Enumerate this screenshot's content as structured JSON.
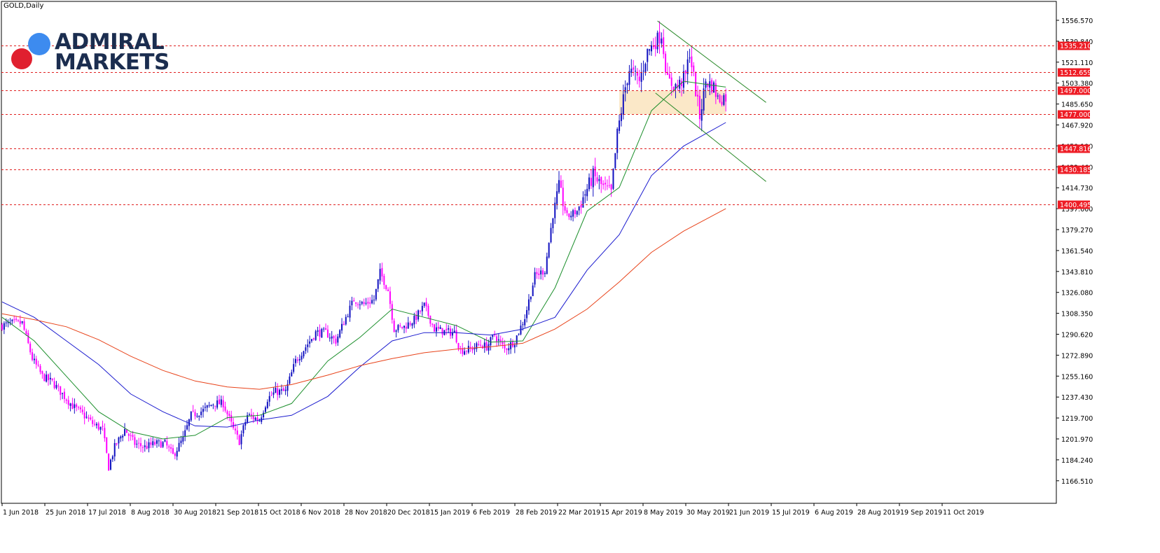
{
  "window": {
    "title": "GOLD,Daily"
  },
  "logo": {
    "line1": "ADMIRAL",
    "line2": "MARKETS"
  },
  "chart_data": {
    "type": "candlestick",
    "title": "GOLD,Daily",
    "ylim": [
      1155,
      1570
    ],
    "x_tick_labels": [
      "1 Jun 2018",
      "25 Jun 2018",
      "17 Jul 2018",
      "8 Aug 2018",
      "30 Aug 2018",
      "21 Sep 2018",
      "15 Oct 2018",
      "6 Nov 2018",
      "28 Nov 2018",
      "20 Dec 2018",
      "15 Jan 2019",
      "6 Feb 2019",
      "28 Feb 2019",
      "22 Mar 2019",
      "15 Apr 2019",
      "8 May 2019",
      "30 May 2019",
      "21 Jun 2019",
      "15 Jul 2019",
      "6 Aug 2019",
      "28 Aug 2019",
      "19 Sep 2019",
      "11 Oct 2019"
    ],
    "y_tick_labels": [
      "1556.570",
      "1539.840",
      "1521.110",
      "1503.380",
      "1485.650",
      "1467.920",
      "1450.190",
      "1432.460",
      "1414.730",
      "1397.000",
      "1379.270",
      "1361.540",
      "1343.810",
      "1326.080",
      "1308.350",
      "1290.620",
      "1272.890",
      "1255.160",
      "1237.430",
      "1219.700",
      "1201.970",
      "1184.240",
      "1166.510"
    ],
    "horizontal_levels": [
      {
        "price": 1535.21,
        "label": "1535.210"
      },
      {
        "price": 1512.659,
        "label": "1512.659"
      },
      {
        "price": 1497.0,
        "label": "1497.000"
      },
      {
        "price": 1477.0,
        "label": "1477.000"
      },
      {
        "price": 1447.816,
        "label": "1447.816"
      },
      {
        "price": 1430.185,
        "label": "1430.185"
      },
      {
        "price": 1400.495,
        "label": "1400.495"
      }
    ],
    "zone": {
      "from": "2019-08-06",
      "to": "2019-10-18",
      "low": 1477.0,
      "high": 1497.0,
      "color": "#fbe8c8"
    },
    "close_anchors": [
      [
        "2018-06-01",
        1298
      ],
      [
        "2018-06-08",
        1300
      ],
      [
        "2018-06-15",
        1300
      ],
      [
        "2018-06-22",
        1270
      ],
      [
        "2018-06-29",
        1255
      ],
      [
        "2018-07-06",
        1250
      ],
      [
        "2018-07-13",
        1240
      ],
      [
        "2018-07-20",
        1230
      ],
      [
        "2018-07-27",
        1223
      ],
      [
        "2018-08-03",
        1215
      ],
      [
        "2018-08-10",
        1210
      ],
      [
        "2018-08-15",
        1178
      ],
      [
        "2018-08-20",
        1195
      ],
      [
        "2018-08-27",
        1210
      ],
      [
        "2018-09-03",
        1198
      ],
      [
        "2018-09-10",
        1195
      ],
      [
        "2018-09-17",
        1198
      ],
      [
        "2018-09-24",
        1198
      ],
      [
        "2018-09-28",
        1188
      ],
      [
        "2018-10-05",
        1202
      ],
      [
        "2018-10-11",
        1222
      ],
      [
        "2018-10-19",
        1226
      ],
      [
        "2018-10-26",
        1232
      ],
      [
        "2018-11-02",
        1232
      ],
      [
        "2018-11-09",
        1210
      ],
      [
        "2018-11-14",
        1200
      ],
      [
        "2018-11-20",
        1222
      ],
      [
        "2018-11-28",
        1218
      ],
      [
        "2018-12-04",
        1236
      ],
      [
        "2018-12-10",
        1242
      ],
      [
        "2018-12-17",
        1242
      ],
      [
        "2018-12-24",
        1268
      ],
      [
        "2018-12-31",
        1280
      ],
      [
        "2019-01-07",
        1292
      ],
      [
        "2019-01-14",
        1292
      ],
      [
        "2019-01-21",
        1285
      ],
      [
        "2019-01-28",
        1305
      ],
      [
        "2019-02-01",
        1320
      ],
      [
        "2019-02-08",
        1316
      ],
      [
        "2019-02-15",
        1320
      ],
      [
        "2019-02-20",
        1343
      ],
      [
        "2019-02-26",
        1328
      ],
      [
        "2019-03-01",
        1295
      ],
      [
        "2019-03-08",
        1297
      ],
      [
        "2019-03-15",
        1303
      ],
      [
        "2019-03-22",
        1315
      ],
      [
        "2019-03-29",
        1295
      ],
      [
        "2019-04-05",
        1293
      ],
      [
        "2019-04-12",
        1292
      ],
      [
        "2019-04-17",
        1277
      ],
      [
        "2019-04-24",
        1278
      ],
      [
        "2019-05-01",
        1282
      ],
      [
        "2019-05-06",
        1280
      ],
      [
        "2019-05-10",
        1290
      ],
      [
        "2019-05-17",
        1278
      ],
      [
        "2019-05-24",
        1285
      ],
      [
        "2019-05-31",
        1305
      ],
      [
        "2019-06-07",
        1340
      ],
      [
        "2019-06-14",
        1345
      ],
      [
        "2019-06-20",
        1392
      ],
      [
        "2019-06-25",
        1415
      ],
      [
        "2019-07-01",
        1390
      ],
      [
        "2019-07-08",
        1395
      ],
      [
        "2019-07-12",
        1410
      ],
      [
        "2019-07-18",
        1425
      ],
      [
        "2019-07-25",
        1415
      ],
      [
        "2019-07-31",
        1410
      ],
      [
        "2019-08-05",
        1460
      ],
      [
        "2019-08-09",
        1500
      ],
      [
        "2019-08-13",
        1515
      ],
      [
        "2019-08-20",
        1505
      ],
      [
        "2019-08-26",
        1530
      ],
      [
        "2019-09-04",
        1545
      ],
      [
        "2019-09-09",
        1505
      ],
      [
        "2019-09-16",
        1500
      ],
      [
        "2019-09-20",
        1510
      ],
      [
        "2019-09-24",
        1530
      ],
      [
        "2019-10-01",
        1475
      ],
      [
        "2019-10-04",
        1505
      ],
      [
        "2019-10-10",
        1500
      ],
      [
        "2019-10-14",
        1490
      ],
      [
        "2019-10-18",
        1492
      ]
    ],
    "series": [
      {
        "kind": "ma",
        "period": 20,
        "color": "#1c8f2c",
        "anchors": [
          [
            "2018-06-01",
            1305
          ],
          [
            "2018-06-25",
            1285
          ],
          [
            "2018-07-17",
            1255
          ],
          [
            "2018-08-08",
            1225
          ],
          [
            "2018-08-30",
            1208
          ],
          [
            "2018-09-21",
            1202
          ],
          [
            "2018-10-15",
            1205
          ],
          [
            "2018-11-06",
            1220
          ],
          [
            "2018-11-28",
            1222
          ],
          [
            "2018-12-20",
            1232
          ],
          [
            "2019-01-15",
            1268
          ],
          [
            "2019-02-06",
            1288
          ],
          [
            "2019-02-28",
            1312
          ],
          [
            "2019-03-22",
            1305
          ],
          [
            "2019-04-15",
            1298
          ],
          [
            "2019-05-08",
            1284
          ],
          [
            "2019-05-30",
            1285
          ],
          [
            "2019-06-21",
            1330
          ],
          [
            "2019-07-15",
            1395
          ],
          [
            "2019-08-06",
            1415
          ],
          [
            "2019-08-28",
            1480
          ],
          [
            "2019-09-19",
            1505
          ],
          [
            "2019-10-18",
            1500
          ]
        ]
      },
      {
        "kind": "ma",
        "period": 50,
        "color": "#1c1ccf",
        "anchors": [
          [
            "2018-06-01",
            1318
          ],
          [
            "2018-06-25",
            1305
          ],
          [
            "2018-07-17",
            1285
          ],
          [
            "2018-08-08",
            1265
          ],
          [
            "2018-08-30",
            1240
          ],
          [
            "2018-09-21",
            1225
          ],
          [
            "2018-10-15",
            1213
          ],
          [
            "2018-11-06",
            1212
          ],
          [
            "2018-11-28",
            1218
          ],
          [
            "2018-12-20",
            1222
          ],
          [
            "2019-01-15",
            1238
          ],
          [
            "2019-02-06",
            1263
          ],
          [
            "2019-02-28",
            1285
          ],
          [
            "2019-03-22",
            1292
          ],
          [
            "2019-04-15",
            1292
          ],
          [
            "2019-05-08",
            1290
          ],
          [
            "2019-05-30",
            1295
          ],
          [
            "2019-06-21",
            1305
          ],
          [
            "2019-07-15",
            1345
          ],
          [
            "2019-08-06",
            1375
          ],
          [
            "2019-08-28",
            1425
          ],
          [
            "2019-09-19",
            1450
          ],
          [
            "2019-10-18",
            1470
          ]
        ]
      },
      {
        "kind": "ma",
        "period": 200,
        "color": "#e8431a",
        "anchors": [
          [
            "2018-06-01",
            1308
          ],
          [
            "2018-06-25",
            1303
          ],
          [
            "2018-07-17",
            1297
          ],
          [
            "2018-08-08",
            1286
          ],
          [
            "2018-08-30",
            1272
          ],
          [
            "2018-09-21",
            1260
          ],
          [
            "2018-10-15",
            1251
          ],
          [
            "2018-11-06",
            1246
          ],
          [
            "2018-11-28",
            1244
          ],
          [
            "2018-12-20",
            1248
          ],
          [
            "2019-01-15",
            1256
          ],
          [
            "2019-02-06",
            1264
          ],
          [
            "2019-02-28",
            1270
          ],
          [
            "2019-03-22",
            1275
          ],
          [
            "2019-04-15",
            1278
          ],
          [
            "2019-05-08",
            1280
          ],
          [
            "2019-05-30",
            1283
          ],
          [
            "2019-06-21",
            1295
          ],
          [
            "2019-07-15",
            1312
          ],
          [
            "2019-08-06",
            1335
          ],
          [
            "2019-08-28",
            1360
          ],
          [
            "2019-09-19",
            1378
          ],
          [
            "2019-10-18",
            1397
          ]
        ]
      }
    ],
    "trendlines": [
      {
        "color": "#2a8a2a",
        "from": [
          "2019-09-02",
          1556
        ],
        "to": [
          "2019-11-15",
          1487
        ]
      },
      {
        "color": "#2a8a2a",
        "from": [
          "2019-08-30",
          1495
        ],
        "to": [
          "2019-11-15",
          1420
        ]
      }
    ],
    "colors": {
      "bull": "#1010c0",
      "bear": "#ff00ff",
      "level_line": "#e02020",
      "level_label_bg": "#ee1c25"
    }
  }
}
